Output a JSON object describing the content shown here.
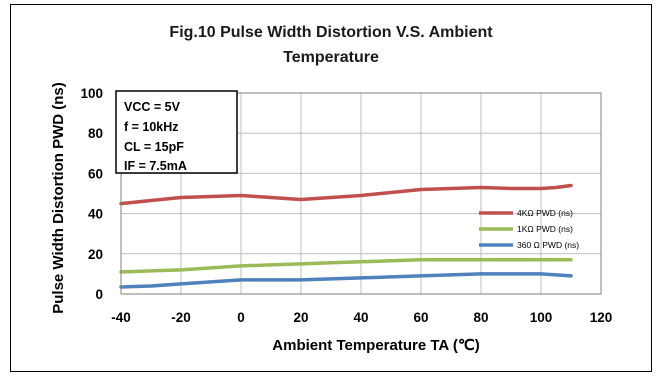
{
  "chart_data": {
    "type": "line",
    "title_lines": [
      "Fig.10 Pulse Width Distortion V.S. Ambient",
      "Temperature"
    ],
    "xlabel": "Ambient Temperature TA (℃)",
    "ylabel": "Pulse Width Distortion PWD (ns)",
    "xlim": [
      -40,
      120
    ],
    "ylim": [
      0,
      100
    ],
    "x_ticks": [
      -40,
      -20,
      0,
      20,
      40,
      60,
      80,
      100,
      120
    ],
    "y_ticks": [
      0,
      20,
      40,
      60,
      80,
      100
    ],
    "grid": true,
    "legend_position": "right",
    "conditions": [
      "VCC = 5V",
      "f = 10kHz",
      "CL = 15pF",
      "IF = 7.5mA"
    ],
    "series": [
      {
        "name": "4KΩ PWD (ns)",
        "color": "#c0504d",
        "x": [
          -40,
          -30,
          -20,
          -10,
          0,
          10,
          20,
          30,
          40,
          50,
          60,
          70,
          80,
          90,
          100,
          105,
          110
        ],
        "y": [
          45,
          46.5,
          48,
          48.5,
          49,
          48,
          47,
          48,
          49,
          50.5,
          52,
          52.5,
          53,
          52.5,
          52.5,
          53,
          54
        ]
      },
      {
        "name": "1KΩ PWD (ns)",
        "color": "#9bbb59",
        "x": [
          -40,
          -30,
          -20,
          -10,
          0,
          10,
          20,
          30,
          40,
          50,
          60,
          70,
          80,
          90,
          100,
          110
        ],
        "y": [
          11,
          11.5,
          12,
          13,
          14,
          14.5,
          15,
          15.5,
          16,
          16.5,
          17,
          17,
          17,
          17,
          17,
          17
        ]
      },
      {
        "name": "360 Ω PWD (ns)",
        "color": "#4f81bd",
        "x": [
          -40,
          -30,
          -20,
          -10,
          0,
          10,
          20,
          30,
          40,
          50,
          60,
          70,
          80,
          90,
          100,
          105,
          110
        ],
        "y": [
          3.5,
          4,
          5,
          6,
          7,
          7,
          7,
          7.5,
          8,
          8.5,
          9,
          9.5,
          10,
          10,
          10,
          9.5,
          9
        ]
      }
    ]
  }
}
